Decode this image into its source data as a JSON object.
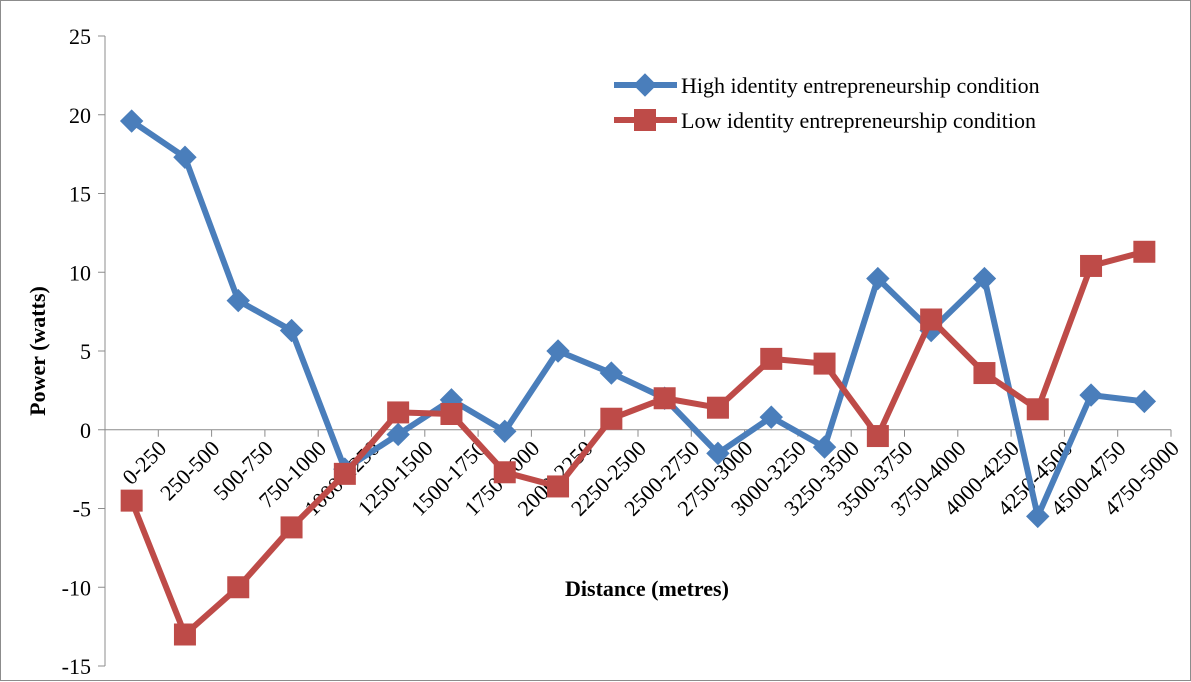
{
  "chart_data": {
    "type": "line",
    "title": "",
    "xlabel": "Distance (metres)",
    "ylabel": "Power (watts)",
    "ylim": [
      -15,
      25
    ],
    "yticks": [
      25,
      20,
      15,
      10,
      5,
      0,
      -5,
      -10,
      -15
    ],
    "grid": false,
    "legend_position": "top-right",
    "categories": [
      "0-250",
      "250-500",
      "500-750",
      "750-1000",
      "1000-1250",
      "1250-1500",
      "1500-1750",
      "1750-2000",
      "2000-2250",
      "2250-2500",
      "2500-2750",
      "2750-3000",
      "3000-3250",
      "3250-3500",
      "3500-3750",
      "3750-4000",
      "4000-4250",
      "4250-4500",
      "4500-4750",
      "4750-5000"
    ],
    "series": [
      {
        "name": "High identity entrepreneurship condition",
        "color": "#4a7ebb",
        "marker": "diamond",
        "values": [
          19.6,
          17.3,
          8.2,
          6.3,
          -2.5,
          -0.3,
          1.9,
          -0.1,
          5.0,
          3.6,
          2.0,
          -1.5,
          0.8,
          -1.1,
          9.6,
          6.3,
          9.6,
          -5.5,
          2.2,
          1.8
        ]
      },
      {
        "name": "Low identity entrepreneurship condition",
        "color": "#be4b48",
        "marker": "square",
        "values": [
          -4.5,
          -13.0,
          -10.0,
          -6.2,
          -2.8,
          1.1,
          1.0,
          -2.7,
          -3.6,
          0.7,
          2.0,
          1.4,
          4.5,
          4.2,
          -0.4,
          7.0,
          3.6,
          1.3,
          10.4,
          11.3
        ]
      }
    ]
  }
}
